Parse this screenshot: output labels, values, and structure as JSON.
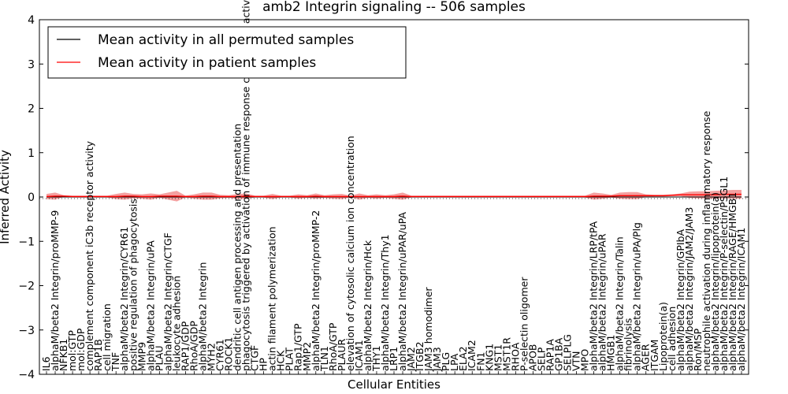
{
  "chart_data": {
    "type": "line",
    "title": "amb2 Integrin signaling -- 506 samples",
    "xlabel": "Cellular Entities",
    "ylabel": "Inferred Activity",
    "ylim": [
      -4,
      4
    ],
    "yticks": [
      -4,
      -3,
      -2,
      -1,
      0,
      1,
      2,
      3,
      4
    ],
    "grid": false,
    "legend_position": "top-left",
    "categories": [
      "IL6",
      "alphaM/beta2 Integrin/proMMP-9",
      "NFKB1",
      "mol:GTP",
      "mol:GDP",
      "complement component iC3b receptor activity",
      "RAP1B",
      "cell migration",
      "TNF",
      "alphaM/beta2 Integrin/CYR61",
      "positive regulation of phagocytosis",
      "MMP9",
      "alphaM/beta2 Integrin/uPA",
      "PLAU",
      "alphaM/beta2 Integrin/CTGF",
      "leukocyte adhesion",
      "RAP1/GDP",
      "RhoA/GDP",
      "alphaM/beta2 Integrin",
      "MYH2",
      "CYR61",
      "ROCK1",
      "dendritic cell antigen processing and presentation",
      "phagocytosis triggered by activation of immune response cell surface activating receptor",
      "CTGF",
      "HP",
      "actin filament polymerization",
      "HCK",
      "PLAT",
      "Rap1/GTP",
      "MMP2",
      "alphaM/beta2 Integrin/proMMP-2",
      "TLN1",
      "RhoA/GTP",
      "PLAUR",
      "elevation of cytosolic calcium ion concentration",
      "ICAM1",
      "alphaM/beta2 Integrin/Hck",
      "THY1",
      "alphaM/beta2 Integrin/Thy1",
      "LRP1",
      "alphaM/beta2 Integrin/uPAR/uPA",
      "JAM2",
      "ITGB2",
      "JAM3 homodimer",
      "JAM3",
      "PLG",
      "LPA",
      "ELA2",
      "ICAM2",
      "FN1",
      "KNG1",
      "MST1",
      "MST1R",
      "RHOA",
      "P-selectin oligomer",
      "APOB",
      "SELP",
      "RAP1A",
      "GP1BA",
      "SELPLG",
      "VTN",
      "MPO",
      "alphaM/beta2 Integrin/LRP/tPA",
      "alphaM/beta2 Integrin/uPAR",
      "HMGB1",
      "alphaM/beta2 Integrin/Talin",
      "fibrinolysis",
      "alphaM/beta2 Integrin/uPA/Plg",
      "AGER",
      "ITGAM",
      "Lipoprotein(a)",
      "cell adhesion",
      "alphaM/beta2 Integrin/GPIbA",
      "alphaM/beta2 Integrin/JAM2/JAM3",
      "Ron/MSP",
      "neutrophile activation during inflammatory response",
      "alphaM/beta2 Integrin/lipoprotein(a)",
      "alphaM/beta2 Integrin/P-selectin/PSGL1",
      "alphaM/beta2 Integrin/RAGE/HMGB1",
      "alphaM/beta2 Integrin/ICAM1"
    ],
    "series": [
      {
        "name": "Mean activity in all permuted samples",
        "color": "#000000",
        "values": [
          0,
          0,
          0,
          0,
          0,
          0,
          0,
          0,
          0,
          0,
          0,
          0,
          0,
          0,
          0,
          0,
          0,
          0,
          0,
          0,
          0,
          0,
          0,
          0,
          0,
          0,
          0,
          0,
          0,
          0,
          0,
          0,
          0,
          0,
          0,
          0,
          0,
          0,
          0,
          0,
          0,
          0,
          0,
          0,
          0,
          0,
          0,
          0,
          0,
          0,
          0,
          0,
          0,
          0,
          0,
          0,
          0,
          0,
          0,
          0,
          0,
          0,
          0,
          0,
          0,
          0,
          0,
          0,
          0,
          0,
          0,
          0,
          0,
          0,
          0,
          0,
          0,
          0,
          0,
          0,
          0
        ]
      },
      {
        "name": "Mean activity in patient samples",
        "color": "#ff0000",
        "band_color": "#f08080",
        "values": [
          0.01,
          0.02,
          0.02,
          0.01,
          0.01,
          0.01,
          0.01,
          0.01,
          0.01,
          0.02,
          0.02,
          0.01,
          0.01,
          0.02,
          0.02,
          0.02,
          0.01,
          0.01,
          0.02,
          0.02,
          0.01,
          0.01,
          0.01,
          0.02,
          0.01,
          0.01,
          0.01,
          0.01,
          0.01,
          0.01,
          0.01,
          0.02,
          0.01,
          0.01,
          0.01,
          0.01,
          0.01,
          0.01,
          0.01,
          0.01,
          0.01,
          0.02,
          0.01,
          0.01,
          0.01,
          0.01,
          0.01,
          0.01,
          0.01,
          0.01,
          0.01,
          0.01,
          0.01,
          0.01,
          0.01,
          0.01,
          0.01,
          0.01,
          0.01,
          0.01,
          0.01,
          0.01,
          0.01,
          0.02,
          0.02,
          0.02,
          0.03,
          0.03,
          0.03,
          0.03,
          0.03,
          0.03,
          0.04,
          0.05,
          0.05,
          0.05,
          0.05,
          0.05,
          0.06,
          0.06,
          0.06
        ],
        "band_halfwidth": [
          0.06,
          0.08,
          0.02,
          0.02,
          0.02,
          0.02,
          0.02,
          0.02,
          0.06,
          0.08,
          0.05,
          0.05,
          0.07,
          0.04,
          0.08,
          0.12,
          0.02,
          0.05,
          0.08,
          0.08,
          0.04,
          0.03,
          0.06,
          0.06,
          0.02,
          0.02,
          0.06,
          0.02,
          0.02,
          0.05,
          0.03,
          0.06,
          0.03,
          0.05,
          0.06,
          0.02,
          0.07,
          0.03,
          0.05,
          0.03,
          0.05,
          0.08,
          0.02,
          0.02,
          0.02,
          0.02,
          0.02,
          0.02,
          0.02,
          0.02,
          0.02,
          0.02,
          0.02,
          0.02,
          0.02,
          0.02,
          0.02,
          0.02,
          0.02,
          0.02,
          0.02,
          0.02,
          0.02,
          0.08,
          0.06,
          0.03,
          0.07,
          0.08,
          0.08,
          0.03,
          0.02,
          0.02,
          0.02,
          0.03,
          0.07,
          0.08,
          0.08,
          0.09,
          0.09,
          0.1,
          0.1
        ]
      }
    ]
  }
}
